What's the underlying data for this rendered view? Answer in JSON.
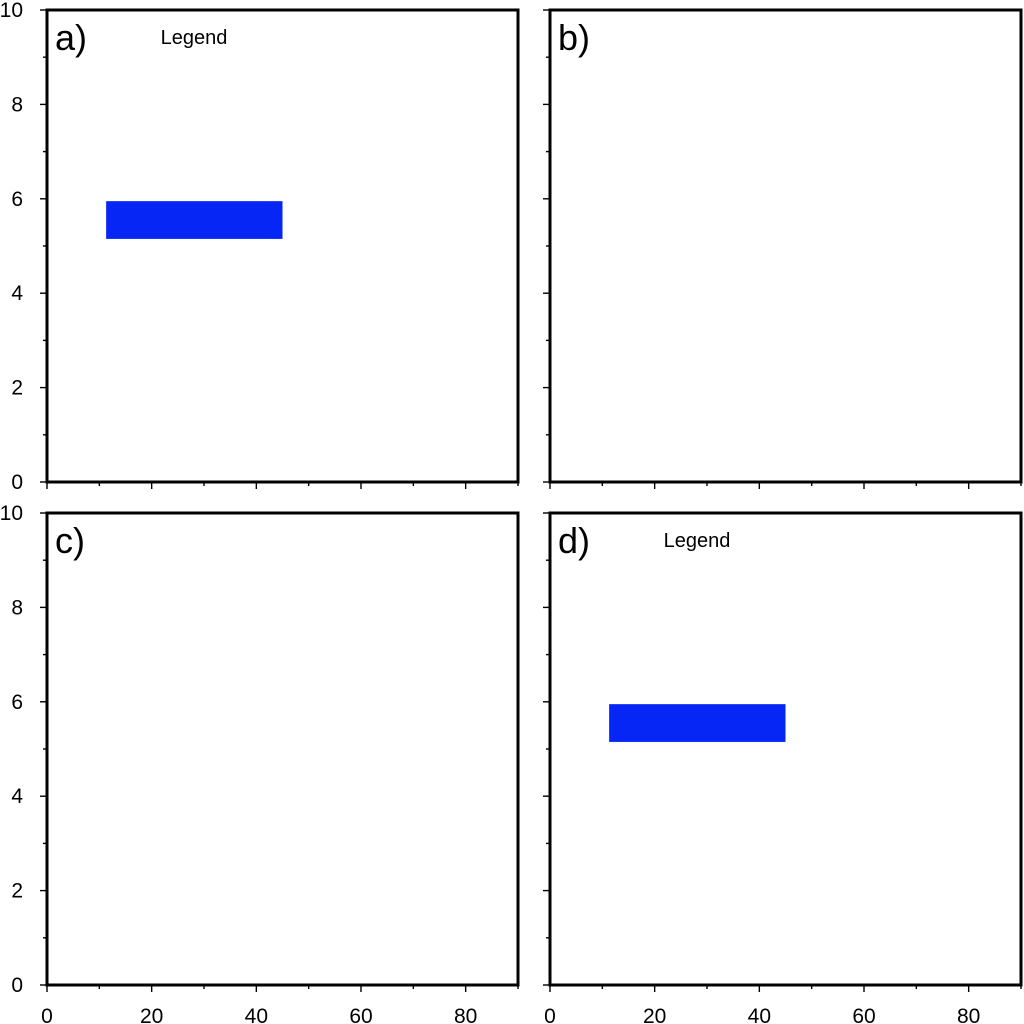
{
  "chart_data": [
    {
      "panel": "a)",
      "type": "bar",
      "xlim": [
        0,
        90
      ],
      "ylim": [
        0,
        10
      ],
      "x_ticks": [
        0,
        20,
        40,
        60,
        80
      ],
      "y_ticks": [
        0,
        2,
        4,
        6,
        8,
        10
      ],
      "show_x_tick_labels": false,
      "show_y_tick_labels": true,
      "legend": {
        "title": "Legend",
        "placement": "top-left"
      },
      "bars": [
        {
          "x0": 11.3,
          "x1": 45.0,
          "y0": 5.15,
          "y1": 5.95,
          "color": "#0526f5"
        }
      ]
    },
    {
      "panel": "b)",
      "type": "bar",
      "xlim": [
        0,
        90
      ],
      "ylim": [
        0,
        10
      ],
      "x_ticks": [
        0,
        20,
        40,
        60,
        80
      ],
      "y_ticks": [
        0,
        2,
        4,
        6,
        8,
        10
      ],
      "show_x_tick_labels": false,
      "show_y_tick_labels": false,
      "legend": null,
      "bars": []
    },
    {
      "panel": "c)",
      "type": "bar",
      "xlim": [
        0,
        90
      ],
      "ylim": [
        0,
        10
      ],
      "x_ticks": [
        0,
        20,
        40,
        60,
        80
      ],
      "y_ticks": [
        0,
        2,
        4,
        6,
        8,
        10
      ],
      "show_x_tick_labels": true,
      "show_y_tick_labels": true,
      "legend": null,
      "bars": []
    },
    {
      "panel": "d)",
      "type": "bar",
      "xlim": [
        0,
        90
      ],
      "ylim": [
        0,
        10
      ],
      "x_ticks": [
        0,
        20,
        40,
        60,
        80
      ],
      "y_ticks": [
        0,
        2,
        4,
        6,
        8,
        10
      ],
      "show_x_tick_labels": true,
      "show_y_tick_labels": false,
      "legend": {
        "title": "Legend",
        "placement": "top-left"
      },
      "bars": [
        {
          "x0": 11.3,
          "x1": 45.0,
          "y0": 5.15,
          "y1": 5.95,
          "color": "#0526f5"
        }
      ]
    }
  ]
}
